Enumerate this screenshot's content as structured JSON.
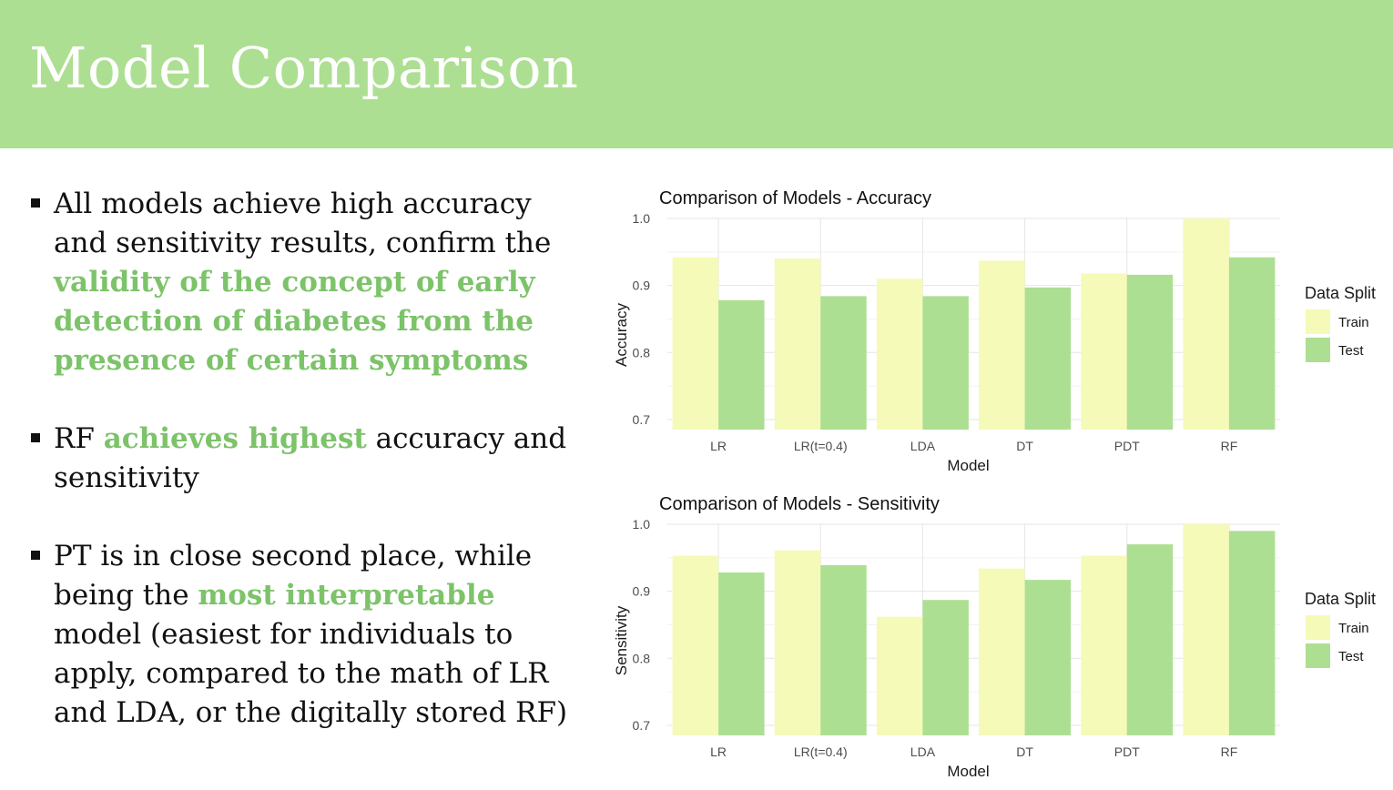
{
  "header": {
    "title": "Model Comparison",
    "bg_color": "#addf92"
  },
  "bullets": [
    {
      "segments": [
        {
          "text": "All models achieve high accuracy and sensitivity results, confirm the ",
          "highlight": false
        },
        {
          "text": "validity of the concept of early detection of diabetes from the presence of certain symptoms",
          "highlight": true
        }
      ]
    },
    {
      "segments": [
        {
          "text": "RF ",
          "highlight": false
        },
        {
          "text": "achieves highest",
          "highlight": true
        },
        {
          "text": " accuracy and sensitivity",
          "highlight": false
        }
      ]
    },
    {
      "segments": [
        {
          "text": "PT is in close second place, while being the ",
          "highlight": false
        },
        {
          "text": "most interpretable",
          "highlight": true
        },
        {
          "text": " model (easiest for individuals to apply, compared to the math of LR and LDA, or the digitally stored RF)",
          "highlight": false
        }
      ]
    }
  ],
  "colors": {
    "highlight": "#7cc369",
    "train": "#f5fab8",
    "test": "#addf92"
  },
  "chart_data": [
    {
      "type": "bar",
      "title": "Comparison of Models - Accuracy",
      "xlabel": "Model",
      "ylabel": "Accuracy",
      "categories": [
        "LR",
        "LR(t=0.4)",
        "LDA",
        "DT",
        "PDT",
        "RF"
      ],
      "series": [
        {
          "name": "Train",
          "values": [
            0.942,
            0.94,
            0.91,
            0.937,
            0.918,
            1.0
          ]
        },
        {
          "name": "Test",
          "values": [
            0.878,
            0.884,
            0.884,
            0.897,
            0.916,
            0.942
          ]
        }
      ],
      "ylim": [
        0.685,
        1.0
      ],
      "yticks": [
        0.7,
        0.8,
        0.9,
        1.0
      ],
      "ytick_labels": [
        "0.7",
        "0.8",
        "0.9",
        "1.0"
      ],
      "legend_title": "Data Split",
      "legend_position": "right",
      "grid": true
    },
    {
      "type": "bar",
      "title": "Comparison of Models - Sensitivity",
      "xlabel": "Model",
      "ylabel": "Sensitivity",
      "categories": [
        "LR",
        "LR(t=0.4)",
        "LDA",
        "DT",
        "PDT",
        "RF"
      ],
      "series": [
        {
          "name": "Train",
          "values": [
            0.953,
            0.961,
            0.862,
            0.934,
            0.953,
            1.0
          ]
        },
        {
          "name": "Test",
          "values": [
            0.928,
            0.939,
            0.887,
            0.917,
            0.97,
            0.99
          ]
        }
      ],
      "ylim": [
        0.685,
        1.0
      ],
      "yticks": [
        0.7,
        0.8,
        0.9,
        1.0
      ],
      "ytick_labels": [
        "0.7",
        "0.8",
        "0.9",
        "1.0"
      ],
      "legend_title": "Data Split",
      "legend_position": "right",
      "grid": true
    }
  ]
}
